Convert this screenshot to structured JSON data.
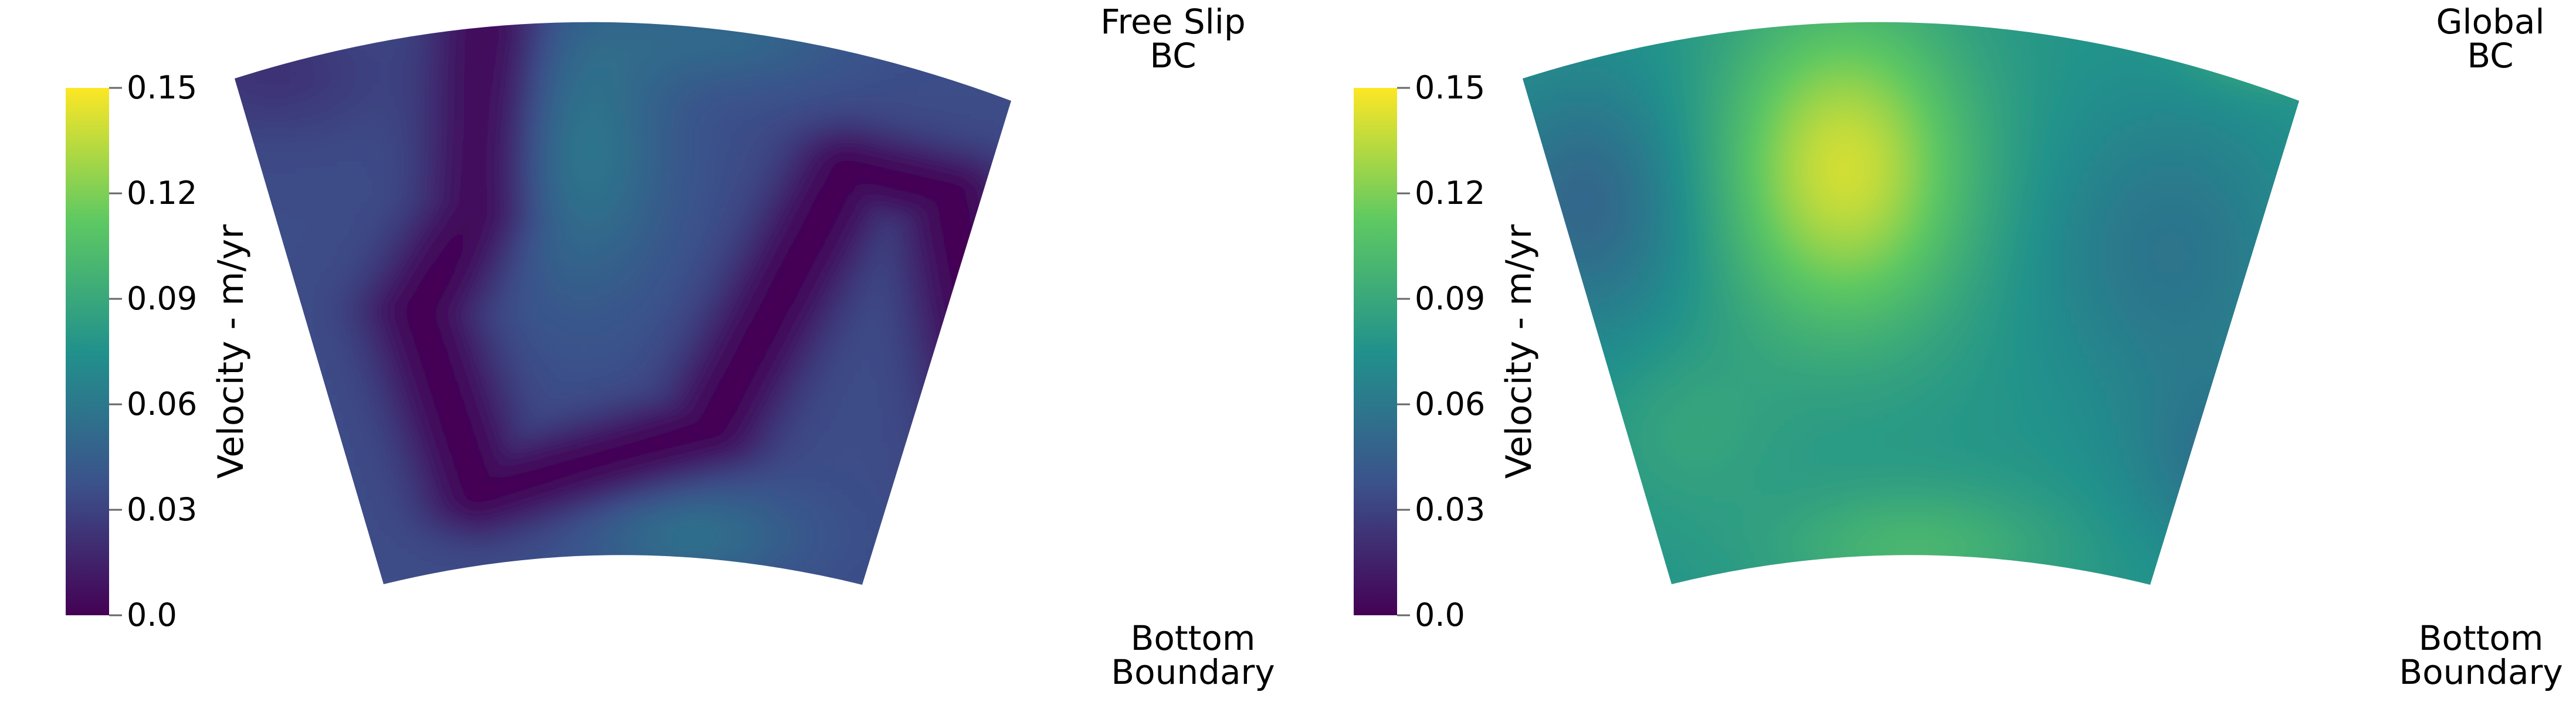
{
  "chart_data": [
    {
      "type": "heatmap",
      "title_lines": [
        "Free Slip",
        "BC"
      ],
      "bottom_label_lines": [
        "Bottom",
        "Boundary"
      ],
      "colorbar": {
        "label": "Velocity - m/yr",
        "colormap": "viridis",
        "colormap_stops": [
          "#440154",
          "#3b528b",
          "#21918c",
          "#5ec962",
          "#fde725"
        ],
        "range": [
          0.0,
          0.15
        ],
        "ticks": [
          0.0,
          0.03,
          0.06,
          0.09,
          0.12,
          0.15
        ],
        "tick_labels": [
          "0.0",
          "0.03",
          "0.06",
          "0.09",
          "0.12",
          "0.15"
        ]
      },
      "field": {
        "base_value": 0.035,
        "features": [
          {
            "shape": "tube",
            "path": [
              [
                0.34,
                0.05
              ],
              [
                0.33,
                0.35
              ],
              [
                0.26,
                0.52
              ],
              [
                0.33,
                0.83
              ],
              [
                0.6,
                0.72
              ],
              [
                0.76,
                0.28
              ],
              [
                0.88,
                0.32
              ],
              [
                0.95,
                0.88
              ]
            ],
            "half_width": 0.065,
            "value": -0.035
          },
          {
            "shape": "blob",
            "center": [
              0.45,
              0.25
            ],
            "radius": [
              0.1,
              0.24
            ],
            "value": 0.024
          },
          {
            "shape": "blob",
            "center": [
              0.58,
              0.9
            ],
            "radius": [
              0.12,
              0.08
            ],
            "value": 0.02
          },
          {
            "shape": "blob",
            "center": [
              0.09,
              0.12
            ],
            "radius": [
              0.12,
              0.1
            ],
            "value": -0.012
          },
          {
            "shape": "blob",
            "center": [
              0.62,
              0.06
            ],
            "radius": [
              0.14,
              0.08
            ],
            "value": 0.015
          }
        ]
      }
    },
    {
      "type": "heatmap",
      "title_lines": [
        "Global",
        "BC"
      ],
      "bottom_label_lines": [
        "Bottom",
        "Boundary"
      ],
      "colorbar": {
        "label": "Velocity - m/yr",
        "colormap": "viridis",
        "colormap_stops": [
          "#440154",
          "#3b528b",
          "#21918c",
          "#5ec962",
          "#fde725"
        ],
        "range": [
          0.0,
          0.15
        ],
        "ticks": [
          0.0,
          0.03,
          0.06,
          0.09,
          0.12,
          0.15
        ],
        "tick_labels": [
          "0.0",
          "0.03",
          "0.06",
          "0.09",
          "0.12",
          "0.15"
        ]
      },
      "field": {
        "base_value": 0.078,
        "features": [
          {
            "shape": "blob",
            "center": [
              0.42,
              0.28
            ],
            "radius": [
              0.14,
              0.26
            ],
            "value": 0.062
          },
          {
            "shape": "blob",
            "center": [
              0.12,
              0.34
            ],
            "radius": [
              0.13,
              0.22
            ],
            "value": -0.028
          },
          {
            "shape": "blob",
            "center": [
              0.8,
              0.42
            ],
            "radius": [
              0.15,
              0.25
            ],
            "value": -0.02
          },
          {
            "shape": "blob",
            "center": [
              0.88,
              0.78
            ],
            "radius": [
              0.12,
              0.16
            ],
            "value": -0.022
          },
          {
            "shape": "blob",
            "center": [
              0.5,
              0.92
            ],
            "radius": [
              0.16,
              0.1
            ],
            "value": 0.022
          },
          {
            "shape": "blob",
            "center": [
              0.24,
              0.72
            ],
            "radius": [
              0.1,
              0.14
            ],
            "value": 0.01
          },
          {
            "shape": "blob",
            "center": [
              0.92,
              0.07
            ],
            "radius": [
              0.09,
              0.07
            ],
            "value": 0.022
          }
        ]
      }
    }
  ]
}
